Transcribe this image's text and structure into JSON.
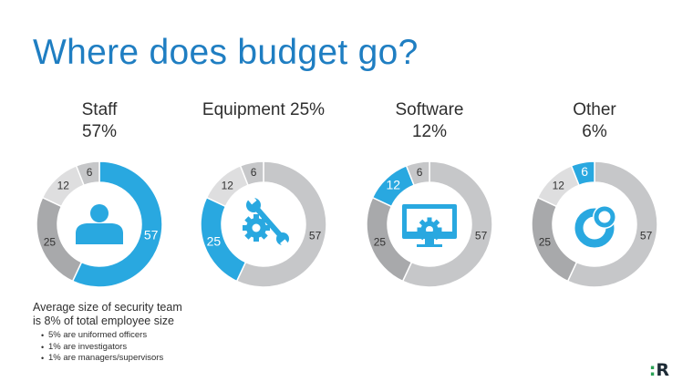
{
  "title": "Where does budget go?",
  "colors": {
    "accent": "#29a8e0",
    "grey_dark": "#a8a9ab",
    "grey_mid": "#c6c7c9",
    "grey_light": "#dededf",
    "title": "#1f7ec2"
  },
  "chart_data": [
    {
      "type": "pie",
      "title_line1": "Staff",
      "title_line2": "57%",
      "categories": [
        "Staff",
        "Equipment",
        "Software",
        "Other"
      ],
      "values": [
        57,
        25,
        12,
        6
      ],
      "highlight": "Staff",
      "icon": "person-icon"
    },
    {
      "type": "pie",
      "title_line1": "Equipment  25%",
      "title_line2": "",
      "categories": [
        "Staff",
        "Equipment",
        "Software",
        "Other"
      ],
      "values": [
        57,
        25,
        12,
        6
      ],
      "highlight": "Equipment",
      "icon": "wrench-gear-icon"
    },
    {
      "type": "pie",
      "title_line1": "Software",
      "title_line2": "12%",
      "categories": [
        "Staff",
        "Equipment",
        "Software",
        "Other"
      ],
      "values": [
        57,
        25,
        12,
        6
      ],
      "highlight": "Software",
      "icon": "monitor-gear-icon"
    },
    {
      "type": "pie",
      "title_line1": "Other",
      "title_line2": "6%",
      "categories": [
        "Staff",
        "Equipment",
        "Software",
        "Other"
      ],
      "values": [
        57,
        25,
        12,
        6
      ],
      "highlight": "Other",
      "icon": "ring-icon"
    }
  ],
  "note": {
    "line1": "Average size of security team",
    "line2": "is 8% of total employee size",
    "bullets": [
      "5% are uniformed officers",
      "1% are investigators",
      "1% are managers/supervisors"
    ]
  },
  "logo": {
    "dots": ":",
    "letter": "R"
  }
}
